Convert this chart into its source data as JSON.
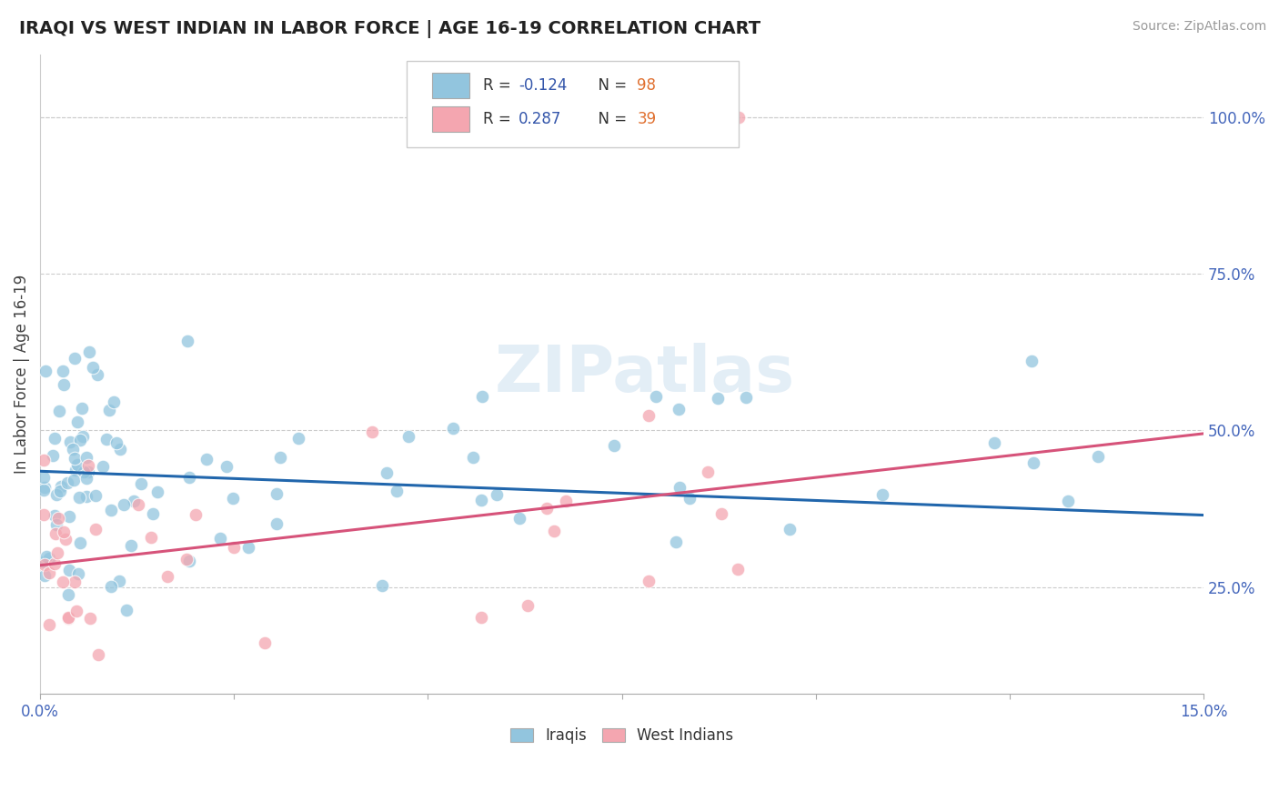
{
  "title": "IRAQI VS WEST INDIAN IN LABOR FORCE | AGE 16-19 CORRELATION CHART",
  "source_text": "Source: ZipAtlas.com",
  "ylabel": "In Labor Force | Age 16-19",
  "xlim": [
    0.0,
    0.15
  ],
  "ylim": [
    0.08,
    1.1
  ],
  "ytick_labels_right": [
    "25.0%",
    "50.0%",
    "75.0%",
    "100.0%"
  ],
  "ytick_vals_right": [
    0.25,
    0.5,
    0.75,
    1.0
  ],
  "watermark": "ZIPatlas",
  "legend_r_iraqi": "-0.124",
  "legend_n_iraqi": "98",
  "legend_r_west_indian": "0.287",
  "legend_n_west_indian": "39",
  "blue_color": "#92C5DE",
  "pink_color": "#F4A6B0",
  "blue_line_color": "#2166AC",
  "pink_line_color": "#D6537A",
  "grid_color": "#cccccc",
  "background_color": "#ffffff",
  "legend_text_color": "#333333",
  "legend_value_color": "#3355AA",
  "axis_label_color": "#4466bb",
  "title_color": "#222222"
}
